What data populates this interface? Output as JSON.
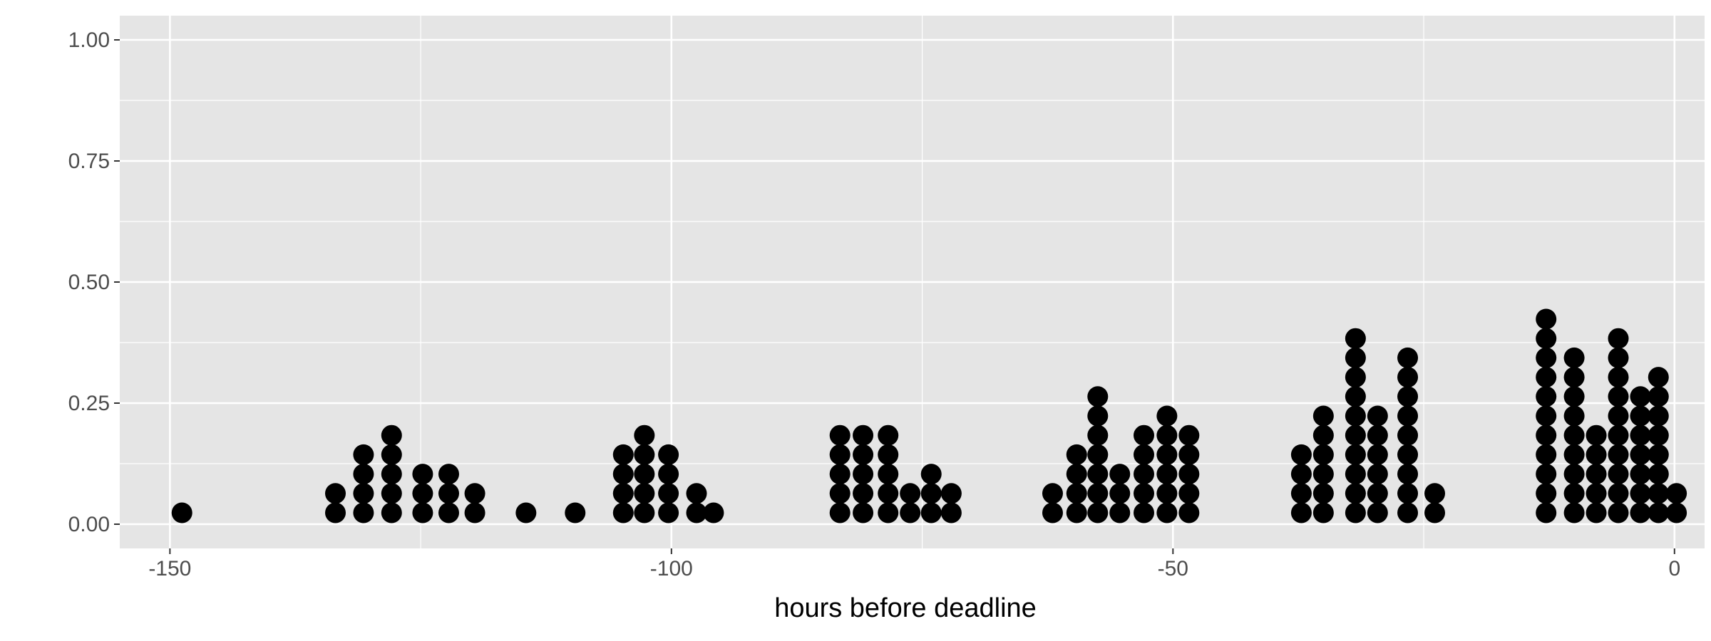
{
  "chart_data": {
    "type": "dotplot",
    "title": "",
    "xlabel": "hours before deadline",
    "ylabel": "",
    "xlim": [
      -155,
      3
    ],
    "ylim": [
      -0.05,
      1.05
    ],
    "x_ticks": [
      -150,
      -100,
      -50,
      0
    ],
    "x_tick_labels": [
      "-150",
      "-100",
      "-50",
      "0"
    ],
    "y_ticks": [
      0.0,
      0.25,
      0.5,
      0.75,
      1.0
    ],
    "y_tick_labels": [
      "0.00",
      "0.25",
      "0.50",
      "0.75",
      "1.00"
    ],
    "grid": true,
    "legend": "none",
    "colors": {
      "panel": "#e5e5e5",
      "grid": "#ffffff",
      "dot": "#000000",
      "axis_text": "#4d4d4d",
      "title_text": "#000000"
    },
    "series": [
      {
        "x": [
          -148.8,
          -133.5,
          -130.7,
          -127.9,
          -124.8,
          -122.2,
          -119.6,
          -114.5,
          -109.6,
          -104.8,
          -102.7,
          -100.3,
          -97.5,
          -95.8,
          -83.2,
          -80.9,
          -78.4,
          -76.2,
          -74.1,
          -72.1,
          -62.0,
          -59.6,
          -57.5,
          -55.3,
          -52.9,
          -50.6,
          -48.4,
          -37.2,
          -35.0,
          -31.8,
          -29.6,
          -26.6,
          -23.9,
          -12.8,
          -10.0,
          -7.8,
          -5.6,
          -3.4,
          -1.6,
          0.2
        ],
        "counts": [
          1,
          2,
          4,
          5,
          3,
          3,
          2,
          1,
          1,
          4,
          5,
          4,
          2,
          1,
          5,
          5,
          5,
          2,
          3,
          2,
          2,
          4,
          7,
          3,
          5,
          6,
          5,
          4,
          6,
          10,
          6,
          9,
          2,
          11,
          9,
          5,
          10,
          7,
          8,
          2
        ]
      }
    ]
  }
}
